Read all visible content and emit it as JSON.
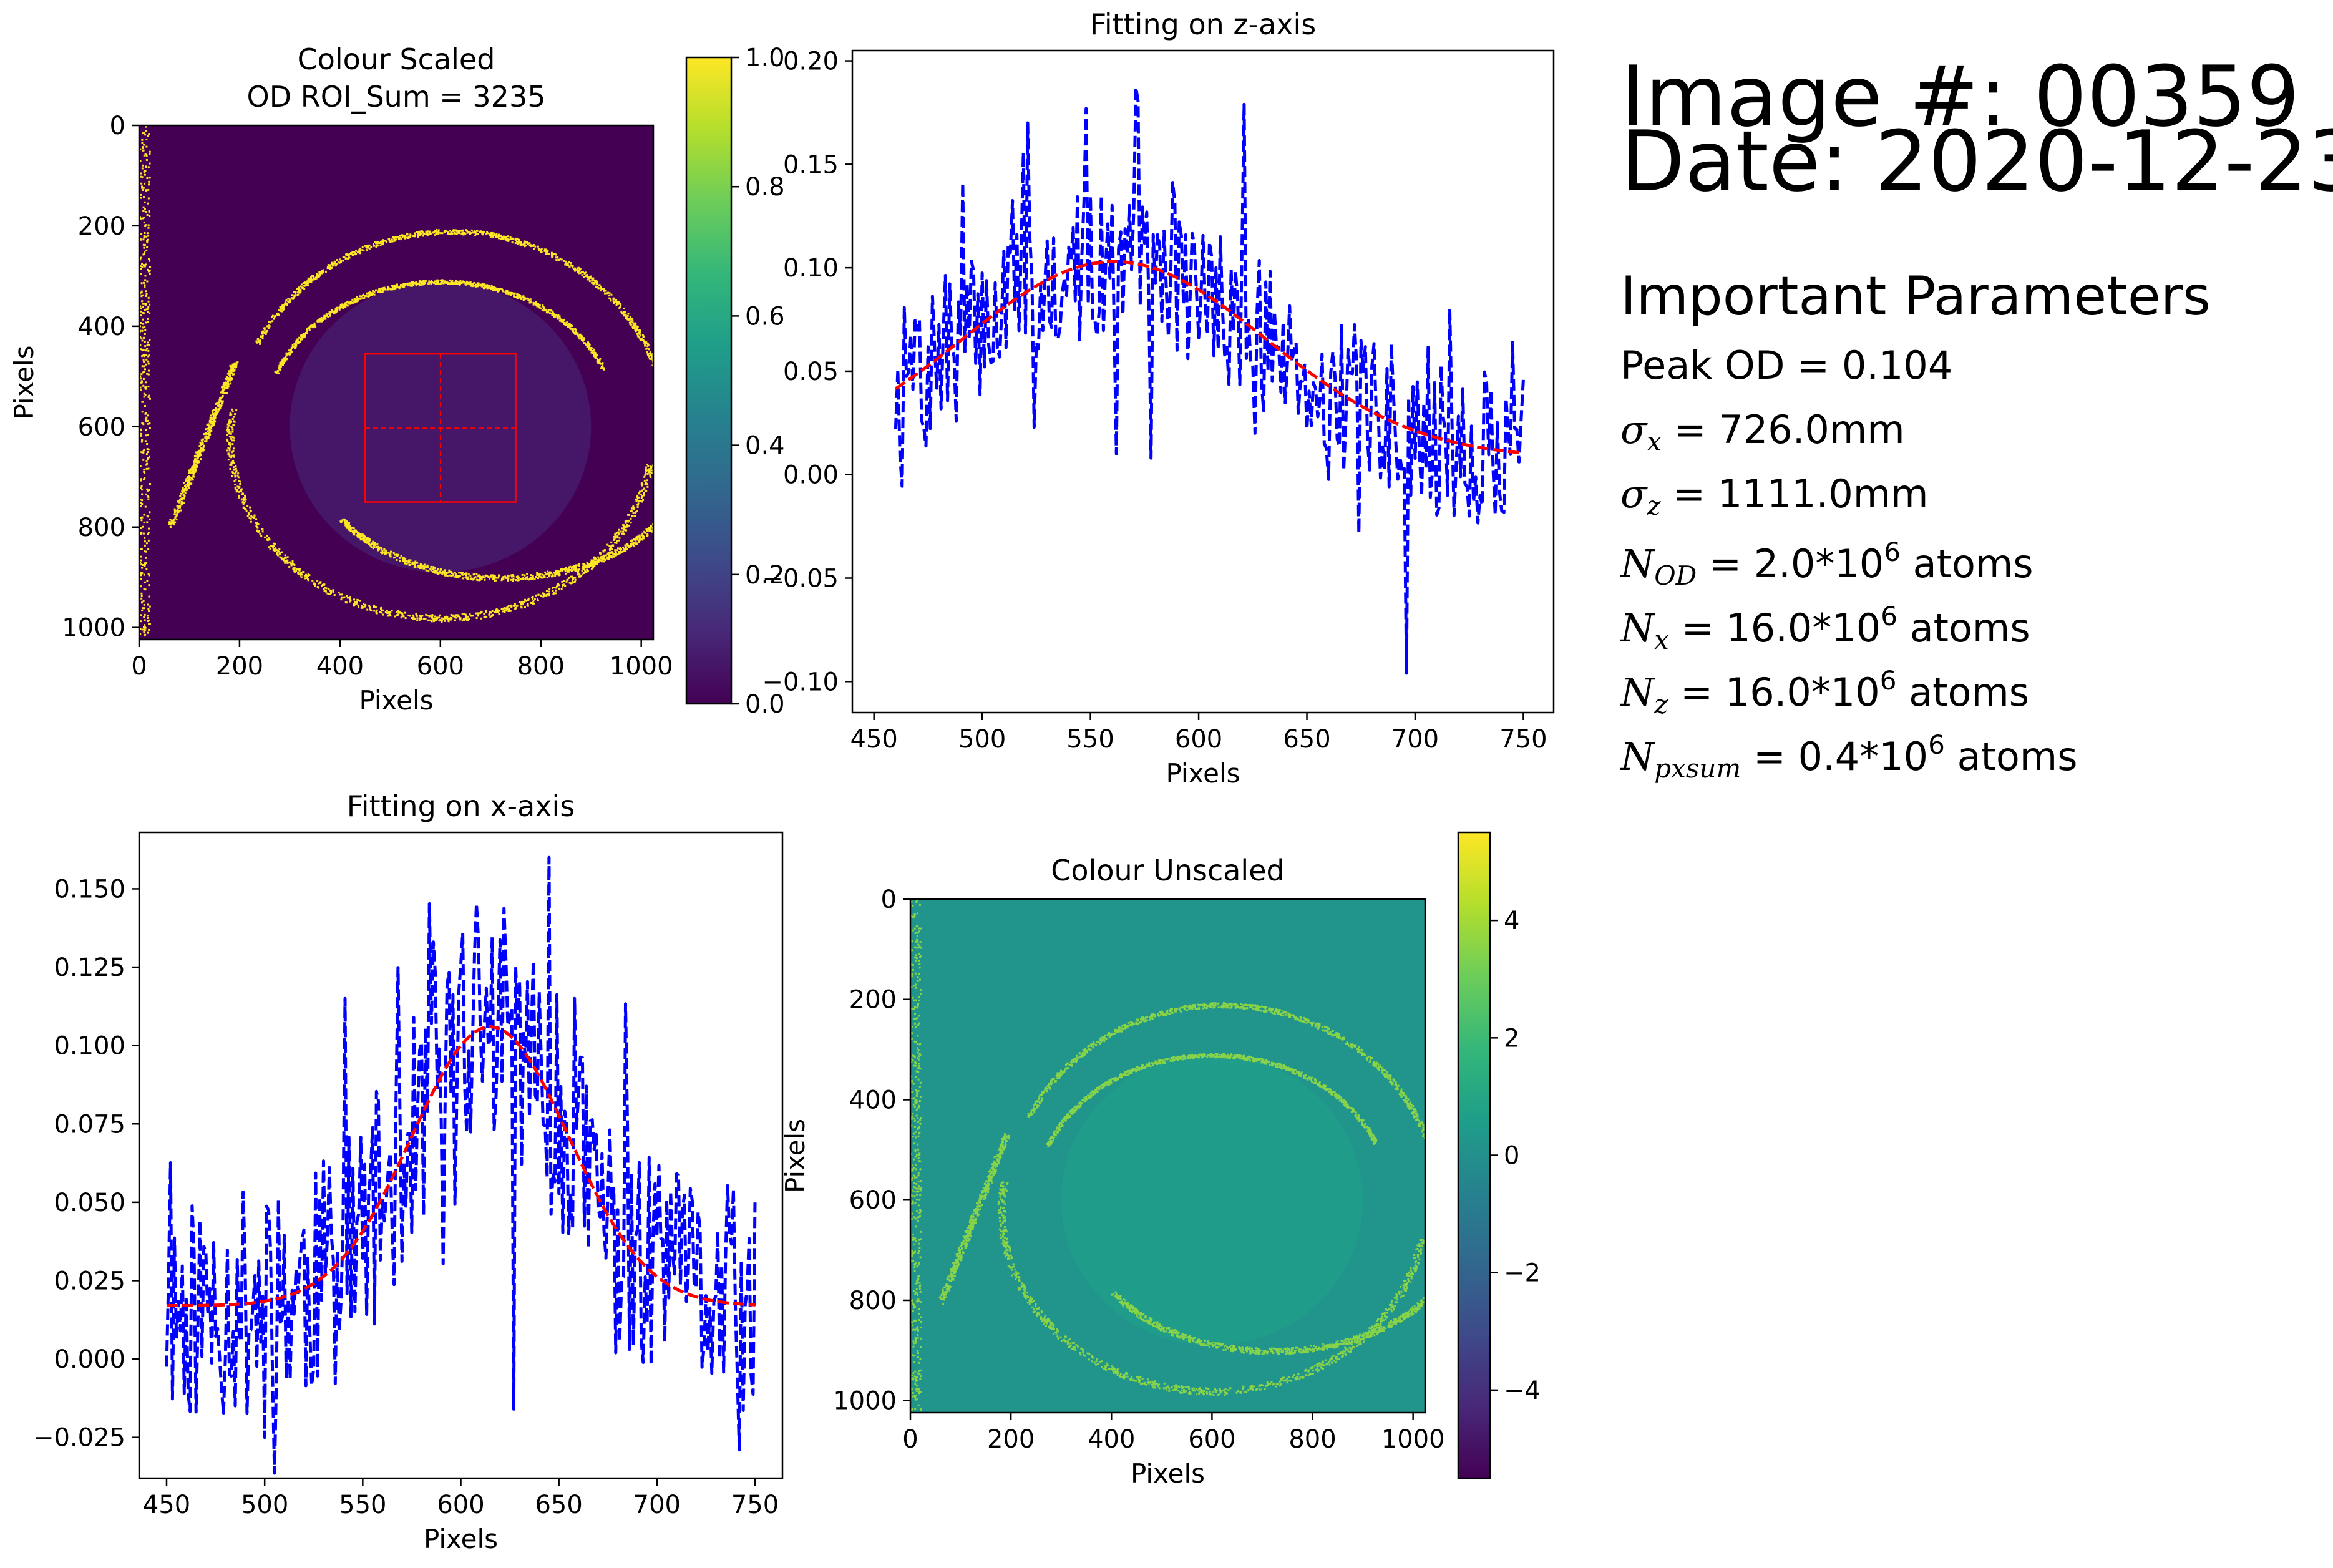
{
  "info": {
    "image_label": "Image #: 00359",
    "date_label": "Date: 2020-12-23",
    "params_title": "Important Parameters",
    "peak_od": "Peak OD = 0.104",
    "sigma_x_sym": "σ",
    "sigma_x_sub": "x",
    "sigma_x_val": " = 726.0mm",
    "sigma_z_sym": "σ",
    "sigma_z_sub": "z",
    "sigma_z_val": " = 1111.0mm",
    "n_od_sym": "N",
    "n_od_sub": "OD",
    "n_od_val": " = 2.0*10",
    "n_od_exp": "6",
    "n_od_unit": " atoms",
    "n_x_sym": "N",
    "n_x_sub": "x",
    "n_x_val": " =  16.0*10",
    "n_x_exp": "6",
    "n_x_unit": " atoms",
    "n_z_sym": "N",
    "n_z_sub": "z",
    "n_z_val": " =  16.0*10",
    "n_z_exp": "6",
    "n_z_unit": " atoms",
    "n_px_sym": "N",
    "n_px_sub": "pxsum",
    "n_px_val": " =  0.4*10",
    "n_px_exp": "6",
    "n_px_unit": " atoms"
  },
  "colors": {
    "data_line": "#0000ff",
    "fit_line": "#ff0000",
    "roi_box": "#ff0000",
    "viridis_low": "#440154",
    "viridis_mid": "#21918c",
    "viridis_high": "#fde725"
  },
  "chart_data": [
    {
      "type": "heatmap",
      "title": "Colour Scaled\nOD ROI_Sum = 3235",
      "xlabel": "Pixels",
      "ylabel": "Pixels",
      "xlim": [
        0,
        1024
      ],
      "ylim": [
        1024,
        0
      ],
      "xticks": [
        0,
        200,
        400,
        600,
        800,
        1000
      ],
      "yticks": [
        0,
        200,
        400,
        600,
        800,
        1000
      ],
      "colormap": "viridis",
      "colorbar": {
        "range": [
          0.0,
          1.0
        ],
        "ticks": [
          "0.0",
          "0.2",
          "0.4",
          "0.6",
          "0.8",
          "1.0"
        ]
      },
      "roi": {
        "x0": 450,
        "x1": 750,
        "y0": 455,
        "y1": 750,
        "cx": 600,
        "cy": 603
      },
      "ring": {
        "cx": 600,
        "cy": 620,
        "rx": 420,
        "ry": 360
      }
    },
    {
      "type": "line",
      "title": "Fitting on z-axis",
      "xlabel": "Pixels",
      "ylabel": "",
      "xlim": [
        440,
        764
      ],
      "ylim": [
        -0.115,
        0.205
      ],
      "xticks": [
        450,
        500,
        550,
        600,
        650,
        700,
        750
      ],
      "yticks": [
        "-0.10",
        "-0.05",
        "0.00",
        "0.05",
        "0.10",
        "0.15",
        "0.20"
      ],
      "series": [
        {
          "style": "dashed-blue",
          "kind": "measured",
          "x_range": [
            460,
            750
          ],
          "n": 290,
          "seed": 7,
          "spikes": [
            [
              491,
              0.141
            ],
            [
              521,
              0.17
            ],
            [
              562,
              0.01
            ],
            [
              571,
              0.187
            ],
            [
              578,
              0.008
            ],
            [
              621,
              0.179
            ],
            [
              626,
              0.02
            ],
            [
              696,
              -0.096
            ],
            [
              716,
              0.08
            ]
          ]
        },
        {
          "style": "dashed-red",
          "kind": "gaussian-fit",
          "amplitude": 0.095,
          "center": 561,
          "sigma": 70,
          "offset": 0.008,
          "x_range": [
            460,
            750
          ]
        }
      ]
    },
    {
      "type": "line",
      "title": "Fitting on x-axis",
      "xlabel": "Pixels",
      "ylabel": "",
      "xlim": [
        436,
        764
      ],
      "ylim": [
        -0.038,
        0.168
      ],
      "xticks": [
        450,
        500,
        550,
        600,
        650,
        700,
        750
      ],
      "yticks": [
        "-0.025",
        "0.000",
        "0.025",
        "0.050",
        "0.075",
        "0.100",
        "0.125",
        "0.150"
      ],
      "series": [
        {
          "style": "dashed-blue",
          "kind": "measured",
          "x_range": [
            450,
            750
          ],
          "n": 300,
          "seed": 11,
          "spikes": [
            [
              500,
              -0.025
            ],
            [
              541,
              0.115
            ],
            [
              645,
              0.16
            ],
            [
              627,
              -0.016
            ],
            [
              658,
              0.115
            ],
            [
              742,
              -0.029
            ],
            [
              748,
              -0.005
            ]
          ]
        },
        {
          "style": "dashed-red",
          "kind": "gaussian-fit",
          "amplitude": 0.089,
          "center": 615,
          "sigma": 40,
          "offset": 0.017,
          "x_range": [
            450,
            750
          ]
        }
      ]
    },
    {
      "type": "heatmap",
      "title": "Colour Unscaled",
      "xlabel": "Pixels",
      "ylabel": "Pixels",
      "xlim": [
        0,
        1024
      ],
      "ylim": [
        1024,
        0
      ],
      "xticks": [
        0,
        200,
        400,
        600,
        800,
        1000
      ],
      "yticks": [
        0,
        200,
        400,
        600,
        800,
        1000
      ],
      "colormap": "viridis",
      "colorbar": {
        "range": [
          -5.5,
          5.5
        ],
        "ticks": [
          "−4",
          "−2",
          "0",
          "2",
          "4"
        ],
        "tick_values": [
          -4,
          -2,
          0,
          2,
          4
        ]
      },
      "ring": {
        "cx": 600,
        "cy": 620,
        "rx": 420,
        "ry": 360
      }
    }
  ]
}
